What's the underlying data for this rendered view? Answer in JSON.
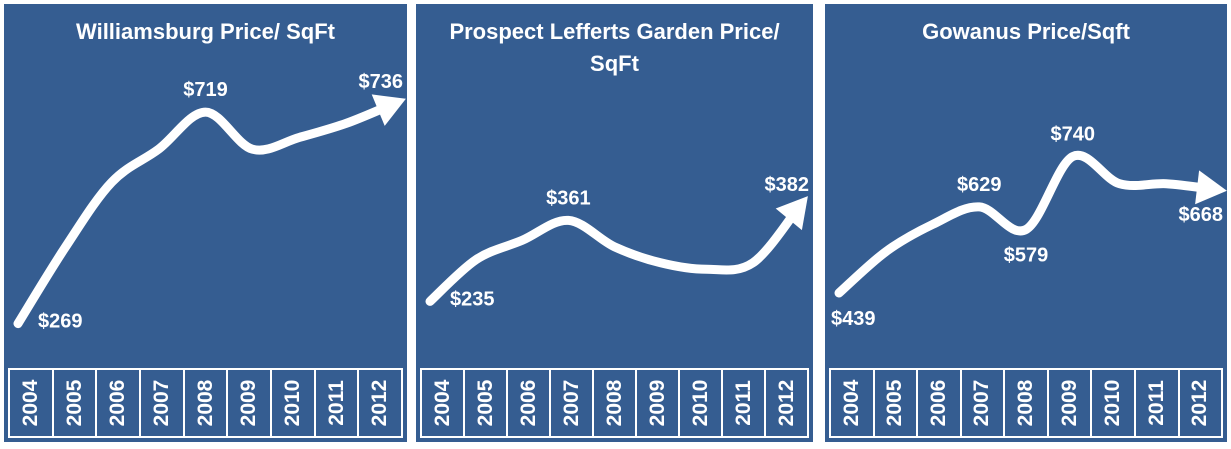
{
  "chart_data": [
    {
      "type": "line",
      "title": "Williamsburg Price/ SqFt",
      "categories": [
        "2004",
        "2005",
        "2006",
        "2007",
        "2008",
        "2009",
        "2010",
        "2011",
        "2012"
      ],
      "values": [
        269,
        430,
        570,
        640,
        719,
        640,
        665,
        695,
        736
      ],
      "data_labels": [
        {
          "x": "2004",
          "text": "$269"
        },
        {
          "x": "2008",
          "text": "$719"
        },
        {
          "x": "2012",
          "text": "$736"
        }
      ],
      "ylim": [
        200,
        800
      ],
      "arrow_end": true,
      "colors": {
        "background": "#355d91",
        "line": "#ffffff",
        "text": "#ffffff"
      }
    },
    {
      "type": "line",
      "title": "Prospect Lefferts Garden Price/ SqFt",
      "categories": [
        "2004",
        "2005",
        "2006",
        "2007",
        "2008",
        "2009",
        "2010",
        "2011",
        "2012"
      ],
      "values": [
        235,
        300,
        330,
        361,
        320,
        295,
        285,
        295,
        382
      ],
      "data_labels": [
        {
          "x": "2004",
          "text": "$235"
        },
        {
          "x": "2007",
          "text": "$361"
        },
        {
          "x": "2012",
          "text": "$382"
        }
      ],
      "ylim": [
        150,
        550
      ],
      "arrow_end": true,
      "colors": {
        "background": "#355d91",
        "line": "#ffffff",
        "text": "#ffffff"
      }
    },
    {
      "type": "line",
      "title": "Gowanus Price/Sqft",
      "categories": [
        "2004",
        "2005",
        "2006",
        "2007",
        "2008",
        "2009",
        "2010",
        "2011",
        "2012"
      ],
      "values": [
        439,
        530,
        590,
        629,
        579,
        740,
        680,
        680,
        668
      ],
      "data_labels": [
        {
          "x": "2004",
          "text": "$439"
        },
        {
          "x": "2007",
          "text": "$629"
        },
        {
          "x": "2008",
          "text": "$579"
        },
        {
          "x": "2009",
          "text": "$740"
        },
        {
          "x": "2012",
          "text": "$668"
        }
      ],
      "ylim": [
        300,
        900
      ],
      "arrow_end": true,
      "colors": {
        "background": "#355d91",
        "line": "#ffffff",
        "text": "#ffffff"
      }
    }
  ]
}
